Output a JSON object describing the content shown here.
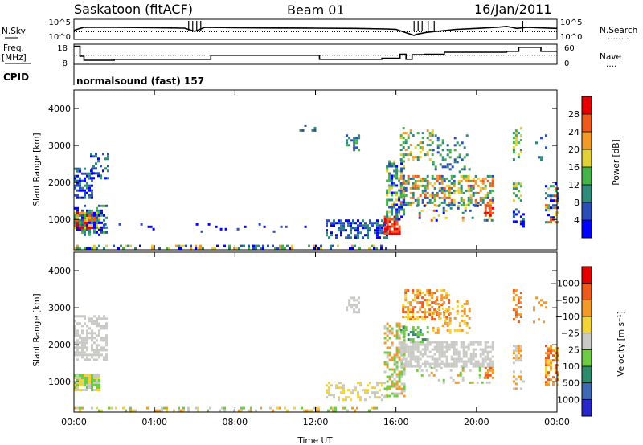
{
  "header": {
    "station": "Saskatoon (fitACF)",
    "beam": "Beam 01",
    "date": "16/Jan/2011"
  },
  "noise_panel": {
    "left_label": "N.Sky",
    "left_ticks": [
      "10^5",
      "10^0"
    ],
    "right_ticks": [
      "10^5",
      "10^0"
    ],
    "right_label": "N.Search",
    "right_label_style": "........",
    "solid_series": {
      "t": [
        0,
        0.3,
        0.5,
        2,
        4,
        5.5,
        6,
        6.5,
        8,
        10,
        12,
        14,
        15.5,
        16,
        16.6,
        16.9,
        17,
        17.5,
        18,
        18.5,
        19,
        20,
        21,
        21.5,
        22,
        22.5,
        23,
        24
      ],
      "v": [
        0.45,
        0.55,
        0.6,
        0.6,
        0.58,
        0.56,
        0.4,
        0.6,
        0.58,
        0.57,
        0.56,
        0.55,
        0.52,
        0.5,
        0.3,
        0.2,
        0.25,
        0.35,
        0.4,
        0.45,
        0.5,
        0.55,
        0.6,
        0.65,
        0.55,
        0.6,
        0.58,
        0.55
      ]
    },
    "spike_times": [
      5.7,
      5.9,
      6.1,
      6.3,
      16.9,
      17.1,
      17.3,
      17.6,
      17.9,
      22.3
    ]
  },
  "freq_panel": {
    "left_title": "Freq.",
    "left_unit": "[MHz]",
    "left_ticks": [
      "18",
      "8"
    ],
    "right_ticks": [
      "60",
      "0"
    ],
    "right_label": "Nave",
    "right_label_style": "....",
    "freq_steps": [
      {
        "t0": 0.0,
        "t1": 0.3,
        "f": 17
      },
      {
        "t0": 0.3,
        "t1": 0.5,
        "f": 12
      },
      {
        "t0": 0.5,
        "t1": 2.0,
        "f": 10
      },
      {
        "t0": 2.0,
        "t1": 6.8,
        "f": 10.5
      },
      {
        "t0": 6.8,
        "t1": 12.2,
        "f": 12.5
      },
      {
        "t0": 12.2,
        "t1": 15.3,
        "f": 10.5
      },
      {
        "t0": 15.3,
        "t1": 16.2,
        "f": 11
      },
      {
        "t0": 16.2,
        "t1": 16.5,
        "f": 13
      },
      {
        "t0": 16.5,
        "t1": 16.8,
        "f": 10.5
      },
      {
        "t0": 16.8,
        "t1": 17.4,
        "f": 12.8
      },
      {
        "t0": 17.4,
        "t1": 18.4,
        "f": 13
      },
      {
        "t0": 18.4,
        "t1": 21.5,
        "f": 14
      },
      {
        "t0": 21.5,
        "t1": 22.1,
        "f": 14.5
      },
      {
        "t0": 22.1,
        "t1": 23.2,
        "f": 16.5
      },
      {
        "t0": 23.2,
        "t1": 24.0,
        "f": 14.5
      }
    ],
    "nave_level": 12.5,
    "cpid_label": "CPID",
    "cpid_text": "normalsound (fast) 157"
  },
  "chart_data": [
    {
      "type": "heatmap",
      "name": "power",
      "ylabel": "Slant Range [km]",
      "xlabel": "Time UT",
      "xlim": [
        0,
        24
      ],
      "ylim": [
        180,
        4500
      ],
      "x_ticks": [
        "00:00",
        "04:00",
        "08:00",
        "12:00",
        "16:00",
        "20:00",
        "00:00"
      ],
      "y_ticks": [
        1000,
        2000,
        3000,
        4000
      ],
      "colorbar": {
        "label": "Power [dB]",
        "labels": [
          "4",
          "8",
          "12",
          "16",
          "20",
          "24",
          "28"
        ],
        "colors": [
          "#0000ff",
          "#2b4fb8",
          "#2f8a7a",
          "#47b14a",
          "#e3cf3c",
          "#f19a2c",
          "#ec5a1e",
          "#e60000"
        ]
      },
      "regions": [
        {
          "t0": 0.0,
          "t1": 0.9,
          "r0": 1600,
          "r1": 2400,
          "c": [
            0,
            1,
            2
          ],
          "d": 0.6
        },
        {
          "t0": 0.8,
          "t1": 1.7,
          "r0": 2100,
          "r1": 2800,
          "c": [
            0,
            1,
            2
          ],
          "d": 0.35
        },
        {
          "t0": 0.0,
          "t1": 1.3,
          "r0": 800,
          "r1": 1200,
          "c": [
            4,
            5,
            6,
            7
          ],
          "d": 0.9
        },
        {
          "t0": 0.0,
          "t1": 1.6,
          "r0": 600,
          "r1": 1400,
          "c": [
            0,
            1,
            2,
            3
          ],
          "d": 0.45
        },
        {
          "t0": 0.0,
          "t1": 15.5,
          "r0": 190,
          "r1": 320,
          "c": [
            0,
            1,
            2,
            3,
            4,
            5
          ],
          "d": 0.35
        },
        {
          "t0": 1.5,
          "t1": 12.0,
          "r0": 650,
          "r1": 900,
          "c": [
            0,
            1
          ],
          "d": 0.06
        },
        {
          "t0": 12.5,
          "t1": 15.6,
          "r0": 500,
          "r1": 1000,
          "c": [
            0,
            1,
            2
          ],
          "d": 0.5
        },
        {
          "t0": 13.5,
          "t1": 14.1,
          "r0": 2900,
          "r1": 3300,
          "c": [
            1,
            2,
            3
          ],
          "d": 0.4
        },
        {
          "t0": 11.2,
          "t1": 12.0,
          "r0": 3400,
          "r1": 3700,
          "c": [
            0,
            1,
            2
          ],
          "d": 0.25
        },
        {
          "t0": 15.4,
          "t1": 16.2,
          "r0": 600,
          "r1": 1100,
          "c": [
            6,
            7
          ],
          "d": 0.8
        },
        {
          "t0": 15.5,
          "t1": 16.4,
          "r0": 1000,
          "r1": 2600,
          "c": [
            0,
            1,
            2,
            3,
            4
          ],
          "d": 0.5
        },
        {
          "t0": 16.2,
          "t1": 20.8,
          "r0": 1400,
          "r1": 2200,
          "c": [
            1,
            2,
            3,
            4,
            5,
            6
          ],
          "d": 0.55
        },
        {
          "t0": 16.2,
          "t1": 17.8,
          "r0": 2600,
          "r1": 3500,
          "c": [
            2,
            3,
            4,
            5
          ],
          "d": 0.35
        },
        {
          "t0": 17.8,
          "t1": 19.6,
          "r0": 2300,
          "r1": 3300,
          "c": [
            1,
            2,
            3
          ],
          "d": 0.25
        },
        {
          "t0": 17.0,
          "t1": 20.8,
          "r0": 950,
          "r1": 1400,
          "c": [
            0,
            1,
            2,
            4,
            6
          ],
          "d": 0.2
        },
        {
          "t0": 20.4,
          "t1": 20.8,
          "r0": 1100,
          "r1": 1400,
          "c": [
            6,
            7
          ],
          "d": 0.6
        },
        {
          "t0": 21.8,
          "t1": 22.2,
          "r0": 1500,
          "r1": 2000,
          "c": [
            2,
            3,
            4
          ],
          "d": 0.6
        },
        {
          "t0": 21.8,
          "t1": 22.2,
          "r0": 2600,
          "r1": 3500,
          "c": [
            2,
            3,
            4
          ],
          "d": 0.4
        },
        {
          "t0": 21.8,
          "t1": 22.3,
          "r0": 800,
          "r1": 1300,
          "c": [
            0,
            1,
            2
          ],
          "d": 0.5
        },
        {
          "t0": 23.4,
          "t1": 24.0,
          "r0": 900,
          "r1": 2000,
          "c": [
            0,
            1,
            2,
            3,
            4,
            6
          ],
          "d": 0.55
        },
        {
          "t0": 22.8,
          "t1": 23.4,
          "r0": 2600,
          "r1": 3300,
          "c": [
            1,
            2
          ],
          "d": 0.2
        }
      ]
    },
    {
      "type": "heatmap",
      "name": "velocity",
      "ylabel": "Slant Range [km]",
      "xlabel": "Time UT",
      "xlim": [
        0,
        24
      ],
      "ylim": [
        180,
        4500
      ],
      "x_ticks": [
        "00:00",
        "04:00",
        "08:00",
        "12:00",
        "16:00",
        "20:00",
        "00:00"
      ],
      "y_ticks": [
        1000,
        2000,
        3000,
        4000
      ],
      "colorbar": {
        "label": "Velocity [m s⁻¹]",
        "labels": [
          "1000",
          "500",
          "100",
          "25",
          "−25",
          "−100",
          "−500",
          "−1000"
        ],
        "colors": [
          "#2828c8",
          "#3f69b0",
          "#2e8a68",
          "#6fca45",
          "#c9c9c5",
          "#f3d33c",
          "#f19a2c",
          "#ec5a1e",
          "#e60000"
        ]
      },
      "regions": [
        {
          "t0": 0.0,
          "t1": 1.6,
          "r0": 1600,
          "r1": 2800,
          "c": [
            4
          ],
          "d": 0.55
        },
        {
          "t0": 0.0,
          "t1": 1.3,
          "r0": 800,
          "r1": 1200,
          "c": [
            4,
            5,
            3
          ],
          "d": 0.85
        },
        {
          "t0": 0.0,
          "t1": 15.5,
          "r0": 190,
          "r1": 320,
          "c": [
            5,
            6,
            3,
            4
          ],
          "d": 0.35
        },
        {
          "t0": 12.5,
          "t1": 15.6,
          "r0": 500,
          "r1": 1000,
          "c": [
            4,
            5
          ],
          "d": 0.4
        },
        {
          "t0": 13.5,
          "t1": 14.1,
          "r0": 2900,
          "r1": 3300,
          "c": [
            4
          ],
          "d": 0.35
        },
        {
          "t0": 15.4,
          "t1": 16.4,
          "r0": 600,
          "r1": 2600,
          "c": [
            4,
            3,
            6
          ],
          "d": 0.55
        },
        {
          "t0": 16.2,
          "t1": 20.8,
          "r0": 1400,
          "r1": 2100,
          "c": [
            4
          ],
          "d": 0.7
        },
        {
          "t0": 16.2,
          "t1": 17.6,
          "r0": 2100,
          "r1": 2500,
          "c": [
            3,
            2
          ],
          "d": 0.4
        },
        {
          "t0": 16.3,
          "t1": 18.6,
          "r0": 2700,
          "r1": 3500,
          "c": [
            6,
            7,
            5
          ],
          "d": 0.5
        },
        {
          "t0": 17.8,
          "t1": 19.6,
          "r0": 2300,
          "r1": 3200,
          "c": [
            6,
            5
          ],
          "d": 0.3
        },
        {
          "t0": 17.0,
          "t1": 20.8,
          "r0": 950,
          "r1": 1400,
          "c": [
            4,
            3,
            6
          ],
          "d": 0.2
        },
        {
          "t0": 20.4,
          "t1": 20.8,
          "r0": 1100,
          "r1": 1400,
          "c": [
            6,
            7
          ],
          "d": 0.55
        },
        {
          "t0": 21.8,
          "t1": 22.2,
          "r0": 1500,
          "r1": 2000,
          "c": [
            4,
            6
          ],
          "d": 0.6
        },
        {
          "t0": 21.8,
          "t1": 22.2,
          "r0": 2600,
          "r1": 3500,
          "c": [
            6,
            7
          ],
          "d": 0.45
        },
        {
          "t0": 21.8,
          "t1": 22.3,
          "r0": 800,
          "r1": 1300,
          "c": [
            4,
            6
          ],
          "d": 0.45
        },
        {
          "t0": 23.4,
          "t1": 24.0,
          "r0": 900,
          "r1": 2000,
          "c": [
            6,
            7,
            5
          ],
          "d": 0.6
        },
        {
          "t0": 22.8,
          "t1": 23.4,
          "r0": 2600,
          "r1": 3300,
          "c": [
            6
          ],
          "d": 0.2
        }
      ]
    }
  ]
}
